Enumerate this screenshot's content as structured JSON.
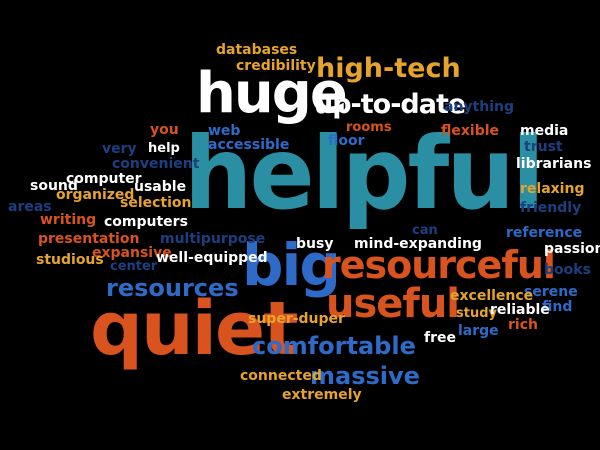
{
  "words": {
    "helpful": "helpful",
    "quiet": "quiet",
    "huge": "huge",
    "big": "big",
    "resourceful": "resourceful",
    "useful": "useful",
    "high_tech": "high-tech",
    "up_to_date": "up-to-date",
    "resources": "resources",
    "comfortable": "comfortable",
    "massive": "massive",
    "databases": "databases",
    "credibility": "credibility",
    "anything": "anything",
    "rooms": "rooms",
    "flexible": "flexible",
    "media": "media",
    "trust": "trust",
    "librarians": "librarians",
    "relaxing": "relaxing",
    "friendly": "friendly",
    "reference": "reference",
    "passion": "passion",
    "books": "books",
    "serene": "serene",
    "find": "find",
    "excellence": "excellence",
    "study": "study",
    "reliable": "reliable",
    "rich": "rich",
    "large": "large",
    "free": "free",
    "you": "you",
    "help": "help",
    "very": "very",
    "web": "web",
    "accessible": "accessible",
    "floor": "floor",
    "convenient": "convenient",
    "computer": "computer",
    "sound": "sound",
    "organized": "organized",
    "usable": "usable",
    "areas": "areas",
    "selection": "selection",
    "writing": "writing",
    "computers": "computers",
    "presentation": "presentation",
    "multipurpose": "multipurpose",
    "expansive": "expansive",
    "studious": "studious",
    "center": "center",
    "well_equipped": "well-equipped",
    "busy": "busy",
    "can": "can",
    "mind_expanding": "mind-expanding",
    "super_duper": "super-duper",
    "connected": "connected",
    "extremely": "extremely"
  },
  "colors": {
    "background": "#000000",
    "white": "#ffffff",
    "teal": "#2a8fa3",
    "blue": "#2e6bc9",
    "orange": "#d9531e",
    "gold": "#e6a52a",
    "navy": "#1d3f80"
  }
}
